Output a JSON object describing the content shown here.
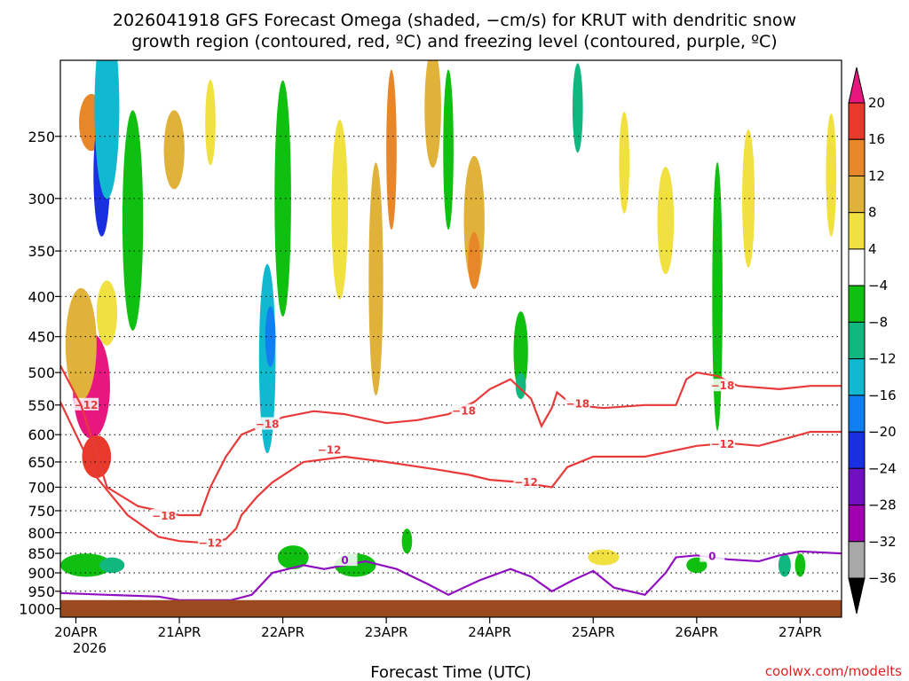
{
  "chart_data": {
    "type": "heatmap",
    "title_lines": [
      "2026041918 GFS Forecast Omega (shaded, −cm/s) for KRUT with dendritic snow",
      "growth region (contoured, red, ºC) and freezing level (contoured, purple, ºC)"
    ],
    "xlabel": "Forecast Time (UTC)",
    "ylabel": "",
    "credit": "coolwx.com/modelts",
    "y_ticks": [
      {
        "label": "250",
        "p": 250
      },
      {
        "label": "300",
        "p": 300
      },
      {
        "label": "350",
        "p": 350
      },
      {
        "label": "400",
        "p": 400
      },
      {
        "label": "450",
        "p": 450
      },
      {
        "label": "500",
        "p": 500
      },
      {
        "label": "550",
        "p": 550
      },
      {
        "label": "600",
        "p": 600
      },
      {
        "label": "650",
        "p": 650
      },
      {
        "label": "700",
        "p": 700
      },
      {
        "label": "750",
        "p": 750
      },
      {
        "label": "800",
        "p": 800
      },
      {
        "label": "850",
        "p": 850
      },
      {
        "label": "900",
        "p": 900
      },
      {
        "label": "950",
        "p": 950
      },
      {
        "label": "1000",
        "p": 1000
      }
    ],
    "y_range_hPa": [
      200,
      1025
    ],
    "x_range_days": [
      -0.15,
      7.4
    ],
    "x_ticks": [
      {
        "label": "20APR",
        "day": 0
      },
      {
        "label": "21APR",
        "day": 1
      },
      {
        "label": "22APR",
        "day": 2
      },
      {
        "label": "23APR",
        "day": 3
      },
      {
        "label": "24APR",
        "day": 4
      },
      {
        "label": "25APR",
        "day": 5
      },
      {
        "label": "26APR",
        "day": 6
      },
      {
        "label": "27APR",
        "day": 7
      }
    ],
    "year_label": "2026",
    "ground_level_hPa": 975,
    "colorbar": {
      "labels": [
        "20",
        "16",
        "12",
        "8",
        "4",
        "−4",
        "−8",
        "−12",
        "−16",
        "−20",
        "−24",
        "−28",
        "−32",
        "−36"
      ],
      "colors": [
        "#e8177f",
        "#e83a2a",
        "#e8862a",
        "#e0b23a",
        "#f0e040",
        "#ffffff",
        "#10c010",
        "#10b880",
        "#10b8d0",
        "#1080f0",
        "#1830e0",
        "#7010c0",
        "#a000b0",
        "#a8a8a8",
        "#000000"
      ]
    },
    "omega_regions": [
      {
        "day": 0.15,
        "p": 240,
        "dday": 0.12,
        "dp": 40,
        "value": 12
      },
      {
        "day": 0.15,
        "p": 520,
        "dday": 0.18,
        "dp": 160,
        "value": 20
      },
      {
        "day": 0.2,
        "p": 640,
        "dday": 0.14,
        "dp": 80,
        "value": 16
      },
      {
        "day": 0.05,
        "p": 460,
        "dday": 0.15,
        "dp": 150,
        "value": 8
      },
      {
        "day": 0.3,
        "p": 420,
        "dday": 0.1,
        "dp": 80,
        "value": 4
      },
      {
        "day": 0.25,
        "p": 280,
        "dday": 0.08,
        "dp": 100,
        "value": -24
      },
      {
        "day": 0.3,
        "p": 230,
        "dday": 0.12,
        "dp": 120,
        "value": -16
      },
      {
        "day": 0.55,
        "p": 320,
        "dday": 0.1,
        "dp": 200,
        "value": -8
      },
      {
        "day": 0.95,
        "p": 260,
        "dday": 0.1,
        "dp": 60,
        "value": 8
      },
      {
        "day": 1.3,
        "p": 240,
        "dday": 0.05,
        "dp": 60,
        "value": 4
      },
      {
        "day": 1.85,
        "p": 480,
        "dday": 0.08,
        "dp": 260,
        "value": -16
      },
      {
        "day": 1.88,
        "p": 450,
        "dday": 0.05,
        "dp": 80,
        "value": -20
      },
      {
        "day": 2.0,
        "p": 300,
        "dday": 0.08,
        "dp": 200,
        "value": -8
      },
      {
        "day": 2.55,
        "p": 310,
        "dday": 0.08,
        "dp": 160,
        "value": 4
      },
      {
        "day": 2.9,
        "p": 430,
        "dday": 0.05,
        "dp": 120,
        "value": 12
      },
      {
        "day": 2.9,
        "p": 380,
        "dday": 0.07,
        "dp": 250,
        "value": 8
      },
      {
        "day": 3.05,
        "p": 260,
        "dday": 0.05,
        "dp": 120,
        "value": 12
      },
      {
        "day": 3.45,
        "p": 230,
        "dday": 0.08,
        "dp": 80,
        "value": 8
      },
      {
        "day": 3.85,
        "p": 320,
        "dday": 0.1,
        "dp": 120,
        "value": 8
      },
      {
        "day": 3.85,
        "p": 360,
        "dday": 0.06,
        "dp": 60,
        "value": 12
      },
      {
        "day": 3.6,
        "p": 260,
        "dday": 0.05,
        "dp": 120,
        "value": -8
      },
      {
        "day": 4.3,
        "p": 470,
        "dday": 0.07,
        "dp": 110,
        "value": -8
      },
      {
        "day": 4.3,
        "p": 520,
        "dday": 0.05,
        "dp": 40,
        "value": -12
      },
      {
        "day": 4.85,
        "p": 230,
        "dday": 0.05,
        "dp": 60,
        "value": -12
      },
      {
        "day": 5.3,
        "p": 270,
        "dday": 0.05,
        "dp": 80,
        "value": 4
      },
      {
        "day": 5.7,
        "p": 320,
        "dday": 0.08,
        "dp": 100,
        "value": 4
      },
      {
        "day": 6.2,
        "p": 400,
        "dday": 0.05,
        "dp": 300,
        "value": -8
      },
      {
        "day": 6.5,
        "p": 300,
        "dday": 0.06,
        "dp": 120,
        "value": 4
      },
      {
        "day": 7.3,
        "p": 280,
        "dday": 0.05,
        "dp": 100,
        "value": 4
      },
      {
        "day": 0.1,
        "p": 880,
        "dday": 0.25,
        "dp": 60,
        "value": -8
      },
      {
        "day": 0.35,
        "p": 880,
        "dday": 0.12,
        "dp": 40,
        "value": -12
      },
      {
        "day": 2.1,
        "p": 860,
        "dday": 0.15,
        "dp": 60,
        "value": -8
      },
      {
        "day": 2.7,
        "p": 880,
        "dday": 0.2,
        "dp": 60,
        "value": -8
      },
      {
        "day": 3.2,
        "p": 820,
        "dday": 0.05,
        "dp": 60,
        "value": -8
      },
      {
        "day": 5.1,
        "p": 860,
        "dday": 0.15,
        "dp": 40,
        "value": 4
      },
      {
        "day": 6.0,
        "p": 880,
        "dday": 0.1,
        "dp": 40,
        "value": -8
      },
      {
        "day": 6.85,
        "p": 880,
        "dday": 0.06,
        "dp": 60,
        "value": -12
      },
      {
        "day": 7.0,
        "p": 880,
        "dday": 0.05,
        "dp": 60,
        "value": -8
      }
    ],
    "contours": [
      {
        "name": "dendritic-minus-12",
        "label": "−12",
        "color": "#e83a3a",
        "points": [
          [
            -0.15,
            545
          ],
          [
            0.2,
            680
          ],
          [
            0.5,
            760
          ],
          [
            0.8,
            810
          ],
          [
            1.0,
            820
          ],
          [
            1.3,
            825
          ],
          [
            1.45,
            815
          ],
          [
            1.55,
            790
          ],
          [
            1.6,
            760
          ],
          [
            1.75,
            720
          ],
          [
            1.9,
            690
          ],
          [
            2.2,
            650
          ],
          [
            2.6,
            640
          ],
          [
            3.0,
            650
          ],
          [
            3.5,
            665
          ],
          [
            3.8,
            675
          ],
          [
            4.0,
            685
          ],
          [
            4.3,
            690
          ],
          [
            4.6,
            700
          ],
          [
            4.75,
            660
          ],
          [
            5.0,
            640
          ],
          [
            5.5,
            640
          ],
          [
            6.0,
            620
          ],
          [
            6.3,
            615
          ],
          [
            6.6,
            620
          ],
          [
            6.9,
            605
          ],
          [
            7.1,
            595
          ],
          [
            7.4,
            595
          ]
        ],
        "label_positions": [
          [
            0.1,
            550
          ],
          [
            1.3,
            825
          ],
          [
            2.45,
            628
          ],
          [
            4.35,
            690
          ],
          [
            6.25,
            617
          ]
        ]
      },
      {
        "name": "dendritic-minus-18",
        "label": "−18",
        "color": "#e83a3a",
        "points": [
          [
            -0.15,
            490
          ],
          [
            0.05,
            550
          ],
          [
            0.3,
            700
          ],
          [
            0.6,
            740
          ],
          [
            1.0,
            760
          ],
          [
            1.2,
            760
          ],
          [
            1.3,
            700
          ],
          [
            1.45,
            640
          ],
          [
            1.6,
            600
          ],
          [
            2.0,
            570
          ],
          [
            2.3,
            560
          ],
          [
            2.6,
            565
          ],
          [
            3.0,
            580
          ],
          [
            3.3,
            575
          ],
          [
            3.6,
            565
          ],
          [
            3.85,
            545
          ],
          [
            4.0,
            525
          ],
          [
            4.2,
            510
          ],
          [
            4.4,
            540
          ],
          [
            4.5,
            585
          ],
          [
            4.6,
            555
          ],
          [
            4.65,
            530
          ],
          [
            4.8,
            550
          ],
          [
            5.1,
            555
          ],
          [
            5.5,
            550
          ],
          [
            5.8,
            550
          ],
          [
            5.9,
            510
          ],
          [
            6.0,
            500
          ],
          [
            6.2,
            505
          ],
          [
            6.4,
            520
          ],
          [
            6.8,
            525
          ],
          [
            7.1,
            520
          ],
          [
            7.4,
            520
          ]
        ],
        "label_positions": [
          [
            0.85,
            762
          ],
          [
            1.85,
            582
          ],
          [
            3.75,
            560
          ],
          [
            4.85,
            548
          ],
          [
            6.25,
            520
          ]
        ]
      },
      {
        "name": "freezing-level-0",
        "label": "0",
        "color": "#9010c0",
        "points": [
          [
            -0.15,
            955
          ],
          [
            0.3,
            960
          ],
          [
            0.8,
            965
          ],
          [
            1.0,
            975
          ],
          [
            1.5,
            975
          ],
          [
            1.7,
            960
          ],
          [
            1.9,
            900
          ],
          [
            2.2,
            880
          ],
          [
            2.4,
            890
          ],
          [
            2.6,
            880
          ],
          [
            2.8,
            870
          ],
          [
            3.1,
            890
          ],
          [
            3.4,
            930
          ],
          [
            3.6,
            960
          ],
          [
            3.9,
            920
          ],
          [
            4.2,
            890
          ],
          [
            4.4,
            910
          ],
          [
            4.6,
            950
          ],
          [
            4.8,
            920
          ],
          [
            5.0,
            895
          ],
          [
            5.2,
            940
          ],
          [
            5.5,
            960
          ],
          [
            5.7,
            900
          ],
          [
            5.8,
            860
          ],
          [
            6.0,
            855
          ],
          [
            6.3,
            865
          ],
          [
            6.6,
            870
          ],
          [
            6.8,
            855
          ],
          [
            7.0,
            845
          ],
          [
            7.4,
            850
          ]
        ],
        "label_positions": [
          [
            2.6,
            868
          ],
          [
            6.15,
            858
          ]
        ]
      }
    ]
  }
}
